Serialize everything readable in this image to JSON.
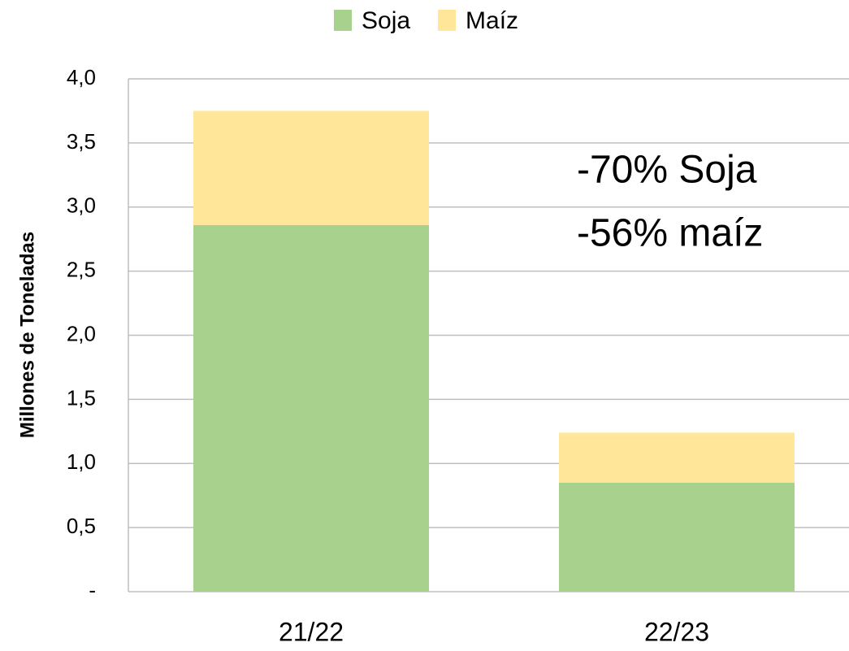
{
  "chart_data": {
    "type": "stacked_bar",
    "y_label": "Millones de Toneladas",
    "categories": [
      "21/22",
      "22/23"
    ],
    "series": [
      {
        "name": "Soja",
        "color": "#a9d18e",
        "values": [
          2.86,
          0.85
        ]
      },
      {
        "name": "Maíz",
        "color": "#ffe699",
        "values": [
          0.89,
          0.39
        ]
      }
    ],
    "ylim": [
      0,
      4
    ],
    "yticks": [
      {
        "value": 0,
        "label": "-"
      },
      {
        "value": 0.5,
        "label": "0,5"
      },
      {
        "value": 1,
        "label": "1,0"
      },
      {
        "value": 1.5,
        "label": "1,5"
      },
      {
        "value": 2,
        "label": "2,0"
      },
      {
        "value": 2.5,
        "label": "2,5"
      },
      {
        "value": 3,
        "label": "3,0"
      },
      {
        "value": 3.5,
        "label": "3,5"
      },
      {
        "value": 4,
        "label": "4,0"
      }
    ],
    "grid": true,
    "legend": "top",
    "annotations": [
      "-70% Soja",
      "-56% maíz"
    ]
  }
}
